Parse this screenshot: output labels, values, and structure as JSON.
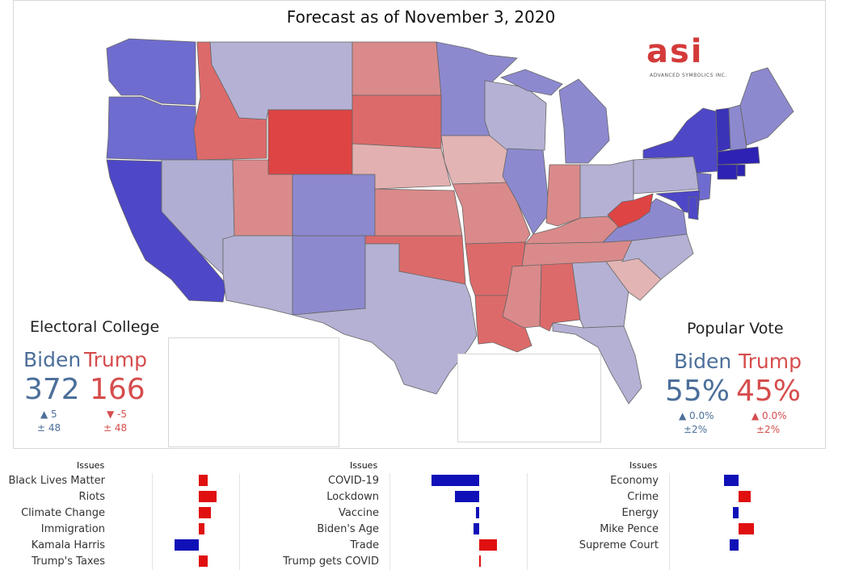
{
  "title": "Forecast as of November 3, 2020",
  "logo": {
    "mark": "asi",
    "sub": "ADVANCED SYMBOLICS INC."
  },
  "electoral": {
    "heading": "Electoral College",
    "biden_label": "Biden",
    "trump_label": "Trump",
    "biden_value": "372",
    "trump_value": "166",
    "biden_change": "▲ 5",
    "trump_change": "▼ -5",
    "biden_margin": "± 48",
    "trump_margin": "± 48"
  },
  "popular": {
    "heading": "Popular Vote",
    "biden_label": "Biden",
    "trump_label": "Trump",
    "biden_value": "55%",
    "trump_value": "45%",
    "biden_change": "▲ 0.0%",
    "trump_change": "▲ 0.0%",
    "biden_margin": "±2%",
    "trump_margin": "±2%"
  },
  "colors": {
    "biden": "#1010b8",
    "trump": "#e01010"
  },
  "issues": [
    {
      "header": "Issues",
      "items": [
        {
          "label": "Black Lives Matter",
          "value": 0.3
        },
        {
          "label": "Riots",
          "value": 0.6
        },
        {
          "label": "Climate Change",
          "value": 0.4
        },
        {
          "label": "Immigration",
          "value": 0.2
        },
        {
          "label": "Kamala Harris",
          "value": -0.8
        },
        {
          "label": "Trump's Taxes",
          "value": 0.3
        }
      ]
    },
    {
      "header": "Issues",
      "items": [
        {
          "label": "COVID-19",
          "value": -1.6
        },
        {
          "label": "Lockdown",
          "value": -0.8
        },
        {
          "label": "Vaccine",
          "value": -0.1
        },
        {
          "label": "Biden's Age",
          "value": -0.2
        },
        {
          "label": "Trade",
          "value": 0.6
        },
        {
          "label": "Trump gets COVID",
          "value": 0.05
        }
      ]
    },
    {
      "header": "Issues",
      "items": [
        {
          "label": "Economy",
          "value": -0.5
        },
        {
          "label": "Crime",
          "value": 0.4
        },
        {
          "label": "Energy",
          "value": -0.2
        },
        {
          "label": "Mike Pence",
          "value": 0.5
        },
        {
          "label": "Supreme Court",
          "value": -0.3
        }
      ]
    }
  ]
}
